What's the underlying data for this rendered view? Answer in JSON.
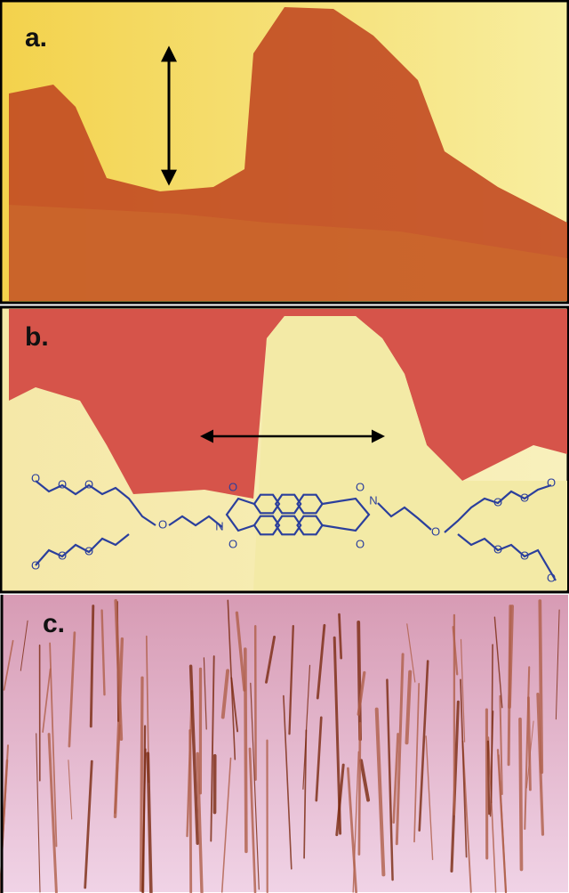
{
  "panels": [
    {
      "label": "a."
    },
    {
      "label": "b."
    },
    {
      "label": "c."
    }
  ],
  "molecule": {
    "atoms": [
      "O",
      "O",
      "O",
      "O",
      "O",
      "O",
      "O",
      "N",
      "O",
      "O",
      "O",
      "O",
      "N",
      "O",
      "O",
      "O",
      "O",
      "O",
      "O",
      "O"
    ]
  }
}
